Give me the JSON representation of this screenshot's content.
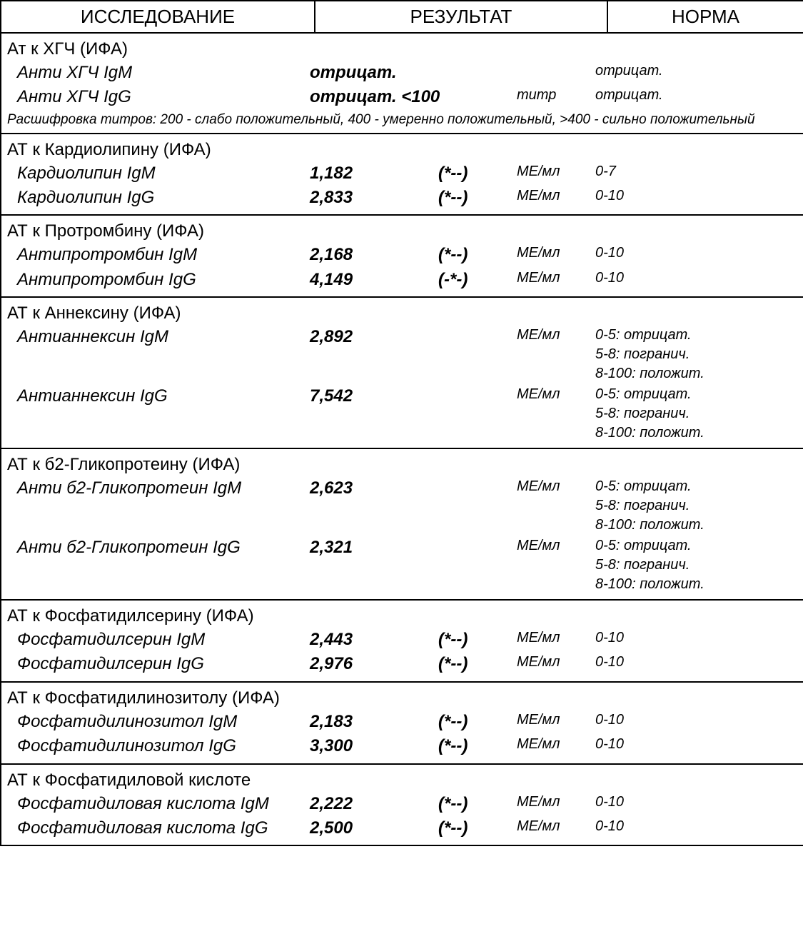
{
  "headers": {
    "study": "ИССЛЕДОВАНИЕ",
    "result": "РЕЗУЛЬТАТ",
    "norm": "НОРМА"
  },
  "sections": [
    {
      "title": "Ат к ХГЧ (ИФА)",
      "footnote": "Расшифровка титров:  200  -  слабо положительный,\n400  -  умеренно положительный,  >400  -  сильно положительный",
      "rows": [
        {
          "test": "Анти ХГЧ IgM",
          "value": "отрицат.",
          "indicator": "",
          "unit": "",
          "norm": "отрицат.",
          "wide": true
        },
        {
          "test": "Анти ХГЧ IgG",
          "value": "отрицат. <100",
          "indicator": "",
          "unit": "титр",
          "norm": "отрицат.",
          "wide": true
        }
      ]
    },
    {
      "title": "АТ к Кардиолипину (ИФА)",
      "rows": [
        {
          "test": "Кардиолипин IgM",
          "value": "1,182",
          "indicator": "(*--)",
          "unit": "МЕ/мл",
          "norm": "0-7"
        },
        {
          "test": "Кардиолипин IgG",
          "value": "2,833",
          "indicator": "(*--)",
          "unit": "МЕ/мл",
          "norm": "0-10"
        }
      ]
    },
    {
      "title": "АТ к Протромбину (ИФА)",
      "rows": [
        {
          "test": "Антипротромбин IgM",
          "value": "2,168",
          "indicator": "(*--)",
          "unit": "МЕ/мл",
          "norm": "0-10"
        },
        {
          "test": "Антипротромбин IgG",
          "value": "4,149",
          "indicator": "(-*-)",
          "unit": "МЕ/мл",
          "norm": "0-10"
        }
      ]
    },
    {
      "title": "АТ к Аннексину (ИФА)",
      "rows": [
        {
          "test": "Антианнексин IgM",
          "value": "2,892",
          "indicator": "",
          "unit": "МЕ/мл",
          "norm": "0-5: отрицат.\n5-8: погранич.\n8-100: положит."
        },
        {
          "test": "Антианнексин IgG",
          "value": "7,542",
          "indicator": "",
          "unit": "МЕ/мл",
          "norm": "0-5: отрицат.\n5-8: погранич.\n8-100: положит."
        }
      ]
    },
    {
      "title": "АТ к б2-Гликопротеину (ИФА)",
      "rows": [
        {
          "test": "Анти б2-Гликопротеин IgM",
          "value": "2,623",
          "indicator": "",
          "unit": "МЕ/мл",
          "norm": "0-5: отрицат.\n5-8: погранич.\n8-100: положит."
        },
        {
          "test": "Анти б2-Гликопротеин IgG",
          "value": "2,321",
          "indicator": "",
          "unit": "МЕ/мл",
          "norm": "0-5: отрицат.\n5-8: погранич.\n8-100: положит."
        }
      ]
    },
    {
      "title": "АТ к Фосфатидилсерину (ИФА)",
      "rows": [
        {
          "test": "Фосфатидилсерин IgM",
          "value": "2,443",
          "indicator": "(*--)",
          "unit": "МЕ/мл",
          "norm": "0-10"
        },
        {
          "test": "Фосфатидилсерин IgG",
          "value": "2,976",
          "indicator": "(*--)",
          "unit": "МЕ/мл",
          "norm": "0-10"
        }
      ]
    },
    {
      "title": "АТ к Фосфатидилинозитолу (ИФА)",
      "rows": [
        {
          "test": "Фосфатидилинозитол IgM",
          "value": "2,183",
          "indicator": "(*--)",
          "unit": "МЕ/мл",
          "norm": "0-10"
        },
        {
          "test": "Фосфатидилинозитол IgG",
          "value": "3,300",
          "indicator": "(*--)",
          "unit": "МЕ/мл",
          "norm": "0-10"
        }
      ]
    },
    {
      "title": "АТ к Фосфатидиловой кислоте",
      "rows": [
        {
          "test": "Фосфатидиловая кислота IgM",
          "value": "2,222",
          "indicator": "(*--)",
          "unit": "МЕ/мл",
          "norm": "0-10"
        },
        {
          "test": "Фосфатидиловая кислота IgG",
          "value": "2,500",
          "indicator": "(*--)",
          "unit": "МЕ/мл",
          "norm": "0-10"
        }
      ]
    }
  ]
}
